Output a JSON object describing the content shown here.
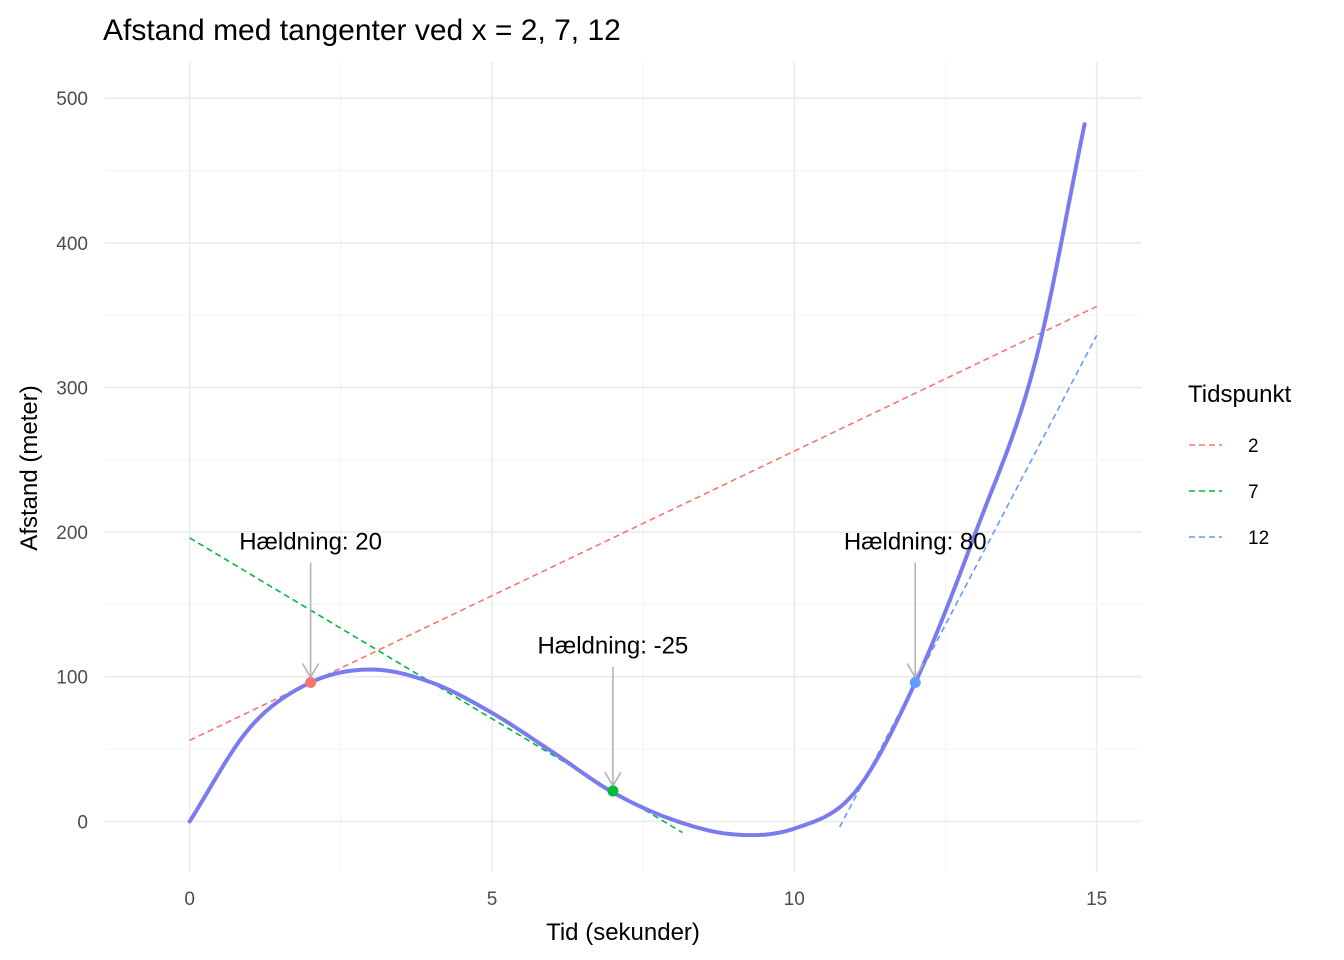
{
  "chart_data": {
    "type": "line",
    "title": "Afstand med tangenter ved x = 2, 7, 12",
    "xlabel": "Tid (sekunder)",
    "ylabel": "Afstand (meter)",
    "xlim": [
      -1.4,
      15.75
    ],
    "ylim": [
      -35,
      525
    ],
    "x_ticks": [
      0,
      5,
      10,
      15
    ],
    "y_ticks": [
      0,
      100,
      200,
      300,
      400,
      500
    ],
    "grid": true,
    "curve": {
      "color": "#7b7bf0",
      "x_range": [
        0,
        14.8
      ],
      "points": [
        [
          0,
          0
        ],
        [
          1,
          65
        ],
        [
          2,
          96
        ],
        [
          3,
          105
        ],
        [
          4,
          96
        ],
        [
          5,
          75
        ],
        [
          6,
          48
        ],
        [
          7,
          20
        ],
        [
          8,
          1
        ],
        [
          9,
          -9
        ],
        [
          10,
          -5
        ],
        [
          11,
          20
        ],
        [
          12,
          96
        ],
        [
          13,
          200
        ],
        [
          14,
          320
        ],
        [
          14.8,
          482
        ]
      ]
    },
    "legend": {
      "title": "Tidspunkt",
      "position": "right",
      "items": [
        {
          "label": "2",
          "color": "#f8766d"
        },
        {
          "label": "7",
          "color": "#00ba38"
        },
        {
          "label": "12",
          "color": "#619cff"
        }
      ]
    },
    "tangents": [
      {
        "name": "2",
        "color": "#f8766d",
        "x0": 2,
        "y0": 96,
        "slope": 20,
        "x_range": [
          0,
          15
        ]
      },
      {
        "name": "7",
        "color": "#00ba38",
        "x0": 7,
        "y0": 21,
        "slope": -25,
        "x_range": [
          0,
          8.15
        ]
      },
      {
        "name": "12",
        "color": "#619cff",
        "x0": 12,
        "y0": 96,
        "slope": 80,
        "x_range": [
          10.75,
          15
        ]
      }
    ],
    "points": [
      {
        "x": 2,
        "y": 96,
        "color": "#f8766d"
      },
      {
        "x": 7,
        "y": 21,
        "color": "#00ba38"
      },
      {
        "x": 12,
        "y": 96,
        "color": "#619cff"
      }
    ],
    "annotations": [
      {
        "text": "Hældning: 20",
        "x": 2,
        "y": 96,
        "label_y": 188
      },
      {
        "text": "Hældning: -25",
        "x": 7,
        "y": 21,
        "label_y": 116
      },
      {
        "text": "Hældning: 80",
        "x": 12,
        "y": 96,
        "label_y": 188
      }
    ]
  }
}
